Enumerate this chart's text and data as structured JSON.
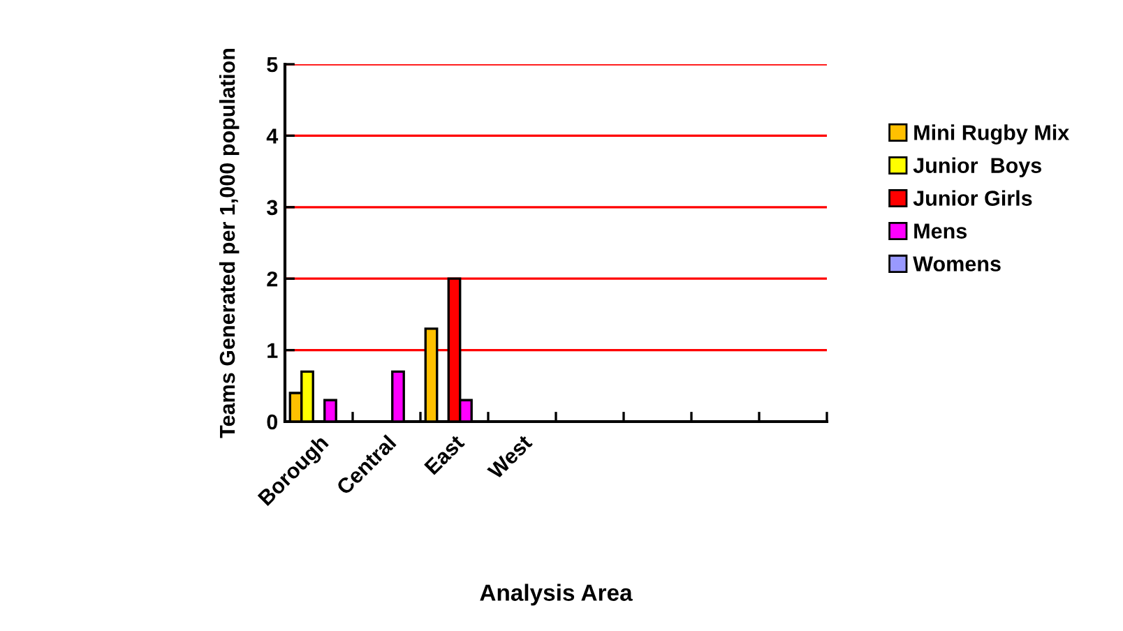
{
  "chart_data": {
    "type": "bar",
    "xlabel": "Analysis Area",
    "ylabel": "Teams Generated per 1,000 population",
    "categories": [
      "Borough",
      "Central",
      "East",
      "West",
      null,
      null,
      null,
      null
    ],
    "series": [
      {
        "name": "Mini Rugby Mix",
        "color": "#ffc000",
        "values": [
          0.4,
          null,
          1.3,
          null,
          null,
          null,
          null,
          null
        ]
      },
      {
        "name": "Junior  Boys",
        "color": "#ffff00",
        "values": [
          0.7,
          null,
          null,
          null,
          null,
          null,
          null,
          null
        ]
      },
      {
        "name": "Junior Girls",
        "color": "#ff0000",
        "values": [
          null,
          null,
          2,
          null,
          null,
          null,
          null,
          null
        ]
      },
      {
        "name": "Mens",
        "color": "#ff00ff",
        "values": [
          0.3,
          0.7,
          0.3,
          null,
          null,
          null,
          null,
          null
        ]
      },
      {
        "name": "Womens",
        "color": "#9999ff",
        "values": [
          null,
          null,
          null,
          null,
          null,
          null,
          null,
          null
        ]
      }
    ],
    "ylim": [
      0,
      5
    ],
    "yticks": [
      0,
      1,
      2,
      3,
      4,
      5
    ],
    "grid": "y",
    "legend": "right"
  }
}
